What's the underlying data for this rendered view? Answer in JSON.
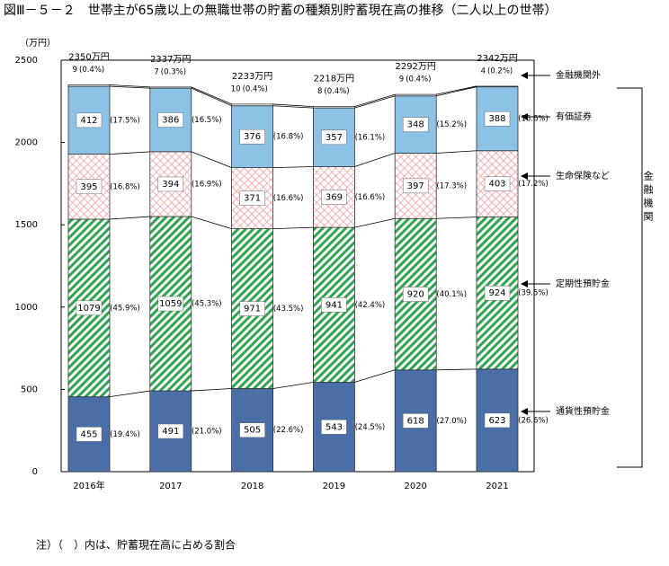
{
  "chart_data": {
    "type": "stacked_bar",
    "title": "図Ⅲ－５－２　世帯主が65歳以上の無職世帯の貯蓄の種類別貯蓄現在高の推移（二人以上の世帯）",
    "y_axis_label": "（万円）",
    "note": "注）（　）内は、貯蓄現在高に占める割合",
    "group_label": "金融機関",
    "categories": [
      "2016年",
      "2017",
      "2018",
      "2019",
      "2020",
      "2021"
    ],
    "ylim": [
      0,
      2500
    ],
    "yticks": [
      0,
      500,
      1000,
      1500,
      2000,
      2500
    ],
    "grid": false,
    "totals": {
      "values": [
        2350,
        2337,
        2233,
        2218,
        2292,
        2342
      ],
      "value_labels": [
        "2350万円",
        "2337万円",
        "2233万円",
        "2218万円",
        "2292万円",
        "2342万円"
      ]
    },
    "series": [
      {
        "name": "通貨性預貯金",
        "color": "#4a6ea6",
        "pattern": "solid",
        "values": [
          455,
          491,
          505,
          543,
          618,
          623
        ],
        "share_labels": [
          "(19.4%)",
          "(21.0%)",
          "(22.6%)",
          "(24.5%)",
          "(27.0%)",
          "(26.6%)"
        ]
      },
      {
        "name": "定期性預貯金",
        "color": "#2ea44f",
        "pattern": "diagonal",
        "values": [
          1079,
          1059,
          971,
          941,
          920,
          924
        ],
        "share_labels": [
          "(45.9%)",
          "(45.3%)",
          "(43.5%)",
          "(42.4%)",
          "(40.1%)",
          "(39.5%)"
        ]
      },
      {
        "name": "生命保険など",
        "color": "#f0a0a0",
        "pattern": "cross",
        "values": [
          395,
          394,
          371,
          369,
          397,
          403
        ],
        "share_labels": [
          "(16.8%)",
          "(16.9%)",
          "(16.6%)",
          "(16.6%)",
          "(17.3%)",
          "(17.2%)"
        ]
      },
      {
        "name": "有価証券",
        "color": "#8cc2e6",
        "pattern": "solid",
        "values": [
          412,
          386,
          376,
          357,
          348,
          388
        ],
        "share_labels": [
          "(17.5%)",
          "(16.5%)",
          "(16.8%)",
          "(16.1%)",
          "(15.2%)",
          "(16.6%)"
        ]
      },
      {
        "name": "金融機関外",
        "color": "#ffffff",
        "pattern": "solid",
        "values": [
          9,
          7,
          10,
          8,
          9,
          4
        ],
        "share_labels": [
          "(0.4%)",
          "(0.3%)",
          "(0.4%)",
          "(0.4%)",
          "(0.4%)",
          "(0.2%)"
        ]
      }
    ]
  }
}
